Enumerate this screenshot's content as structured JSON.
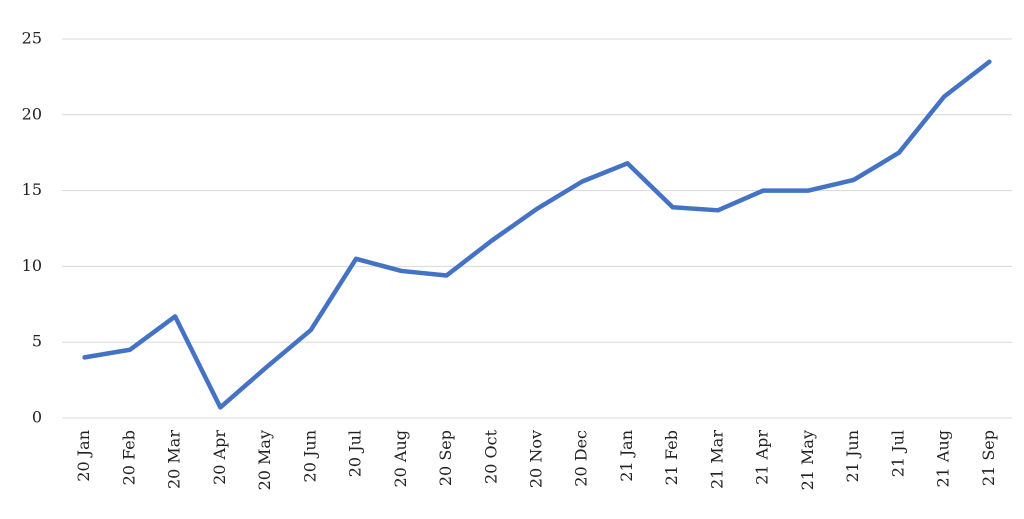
{
  "chart_data": {
    "type": "line",
    "categories": [
      "20 Jan",
      "20 Feb",
      "20 Mar",
      "20 Apr",
      "20 May",
      "20 Jun",
      "20 Jul",
      "20 Aug",
      "20 Sep",
      "20 Oct",
      "20 Nov",
      "20 Dec",
      "21 Jan",
      "21 Feb",
      "21 Mar",
      "21 Apr",
      "21 May",
      "21 Jun",
      "21 Jul",
      "21 Aug",
      "21 Sep"
    ],
    "values": [
      4.0,
      4.5,
      6.7,
      0.7,
      3.3,
      5.8,
      10.5,
      9.7,
      9.4,
      11.7,
      13.8,
      15.6,
      16.8,
      13.9,
      13.7,
      15.0,
      15.0,
      15.7,
      17.5,
      21.2,
      23.5
    ],
    "color": "#4472c4",
    "ylim": [
      0,
      25
    ],
    "yticks": [
      0,
      5,
      10,
      15,
      20,
      25
    ],
    "grid": true
  }
}
